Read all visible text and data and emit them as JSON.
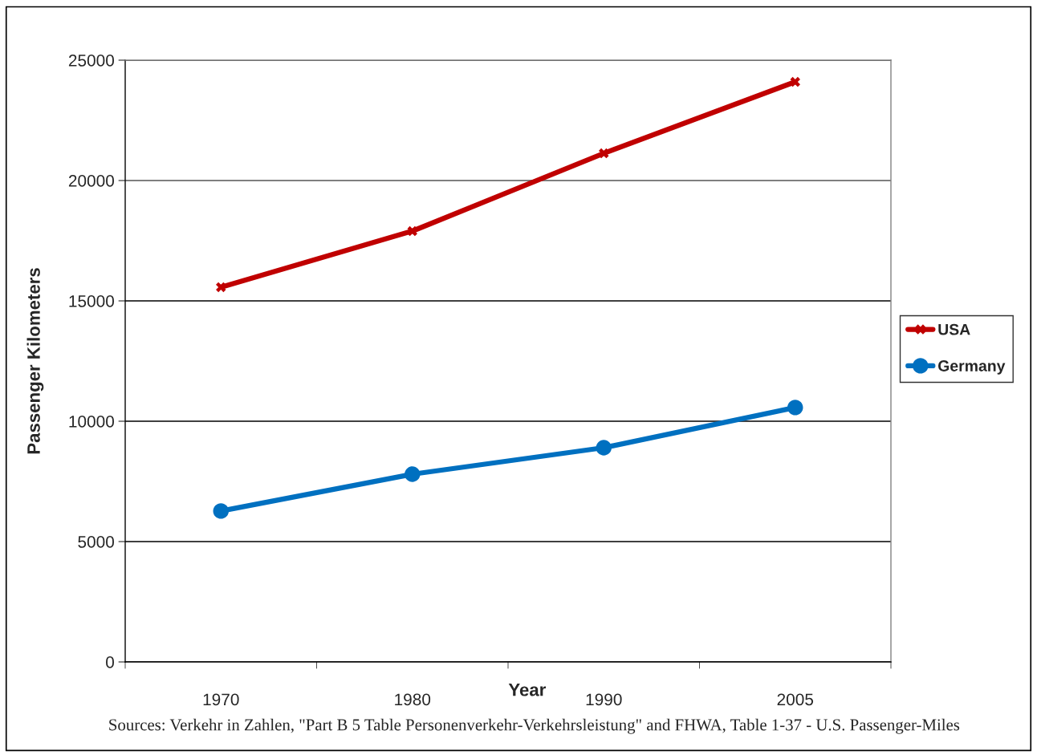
{
  "chart_data": {
    "type": "line",
    "xlabel": "Year",
    "ylabel": "Passenger Kilometers",
    "categories": [
      "1970",
      "1980",
      "1990",
      "2005"
    ],
    "series": [
      {
        "name": "USA",
        "color": "#c00000",
        "marker": "cross",
        "values": [
          15570,
          17900,
          21130,
          24100
        ]
      },
      {
        "name": "Germany",
        "color": "#0070c0",
        "marker": "circle",
        "values": [
          6270,
          7800,
          8900,
          10570
        ]
      }
    ],
    "ylim": [
      0,
      25000
    ],
    "yticks": [
      0,
      5000,
      10000,
      15000,
      20000,
      25000
    ],
    "grid": "y",
    "legend": "right",
    "annotations": [
      "Sources: Verkehr in Zahlen, \"Part B 5 Table Personenverkehr-Verkehrsleistung\" and FHWA, Table 1-37 - U.S. Passenger-Miles"
    ]
  }
}
